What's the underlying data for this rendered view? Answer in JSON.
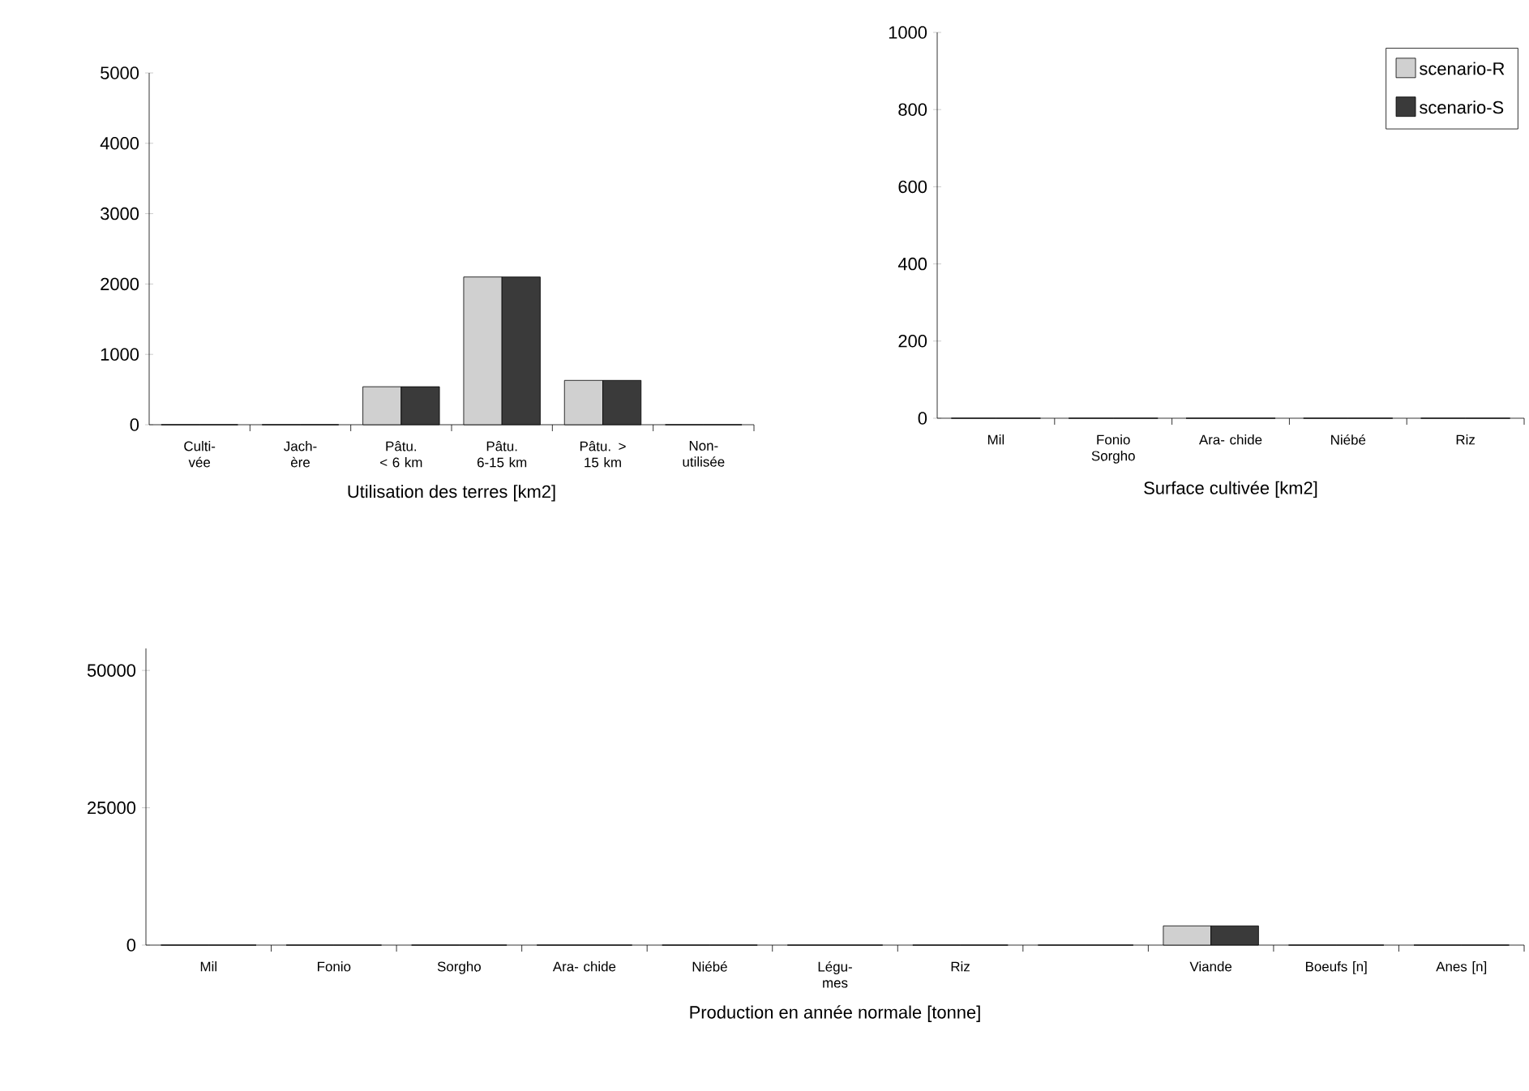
{
  "chart_data": [
    {
      "type": "bar",
      "xlabel": "Utilisation des terres  [km2]",
      "categories": [
        "Culti- vée",
        "Jach- ère",
        "Pâtu. < 6 km",
        "Pâtu. 6-15 km",
        "Pâtu. > 15 km",
        "Non- utilisée"
      ],
      "series": [
        {
          "color": "#d0d0d0",
          "values": [
            0,
            0,
            540,
            2100,
            630,
            0
          ]
        },
        {
          "color": "#3a3a3a",
          "values": [
            0,
            0,
            540,
            2100,
            630,
            0
          ]
        }
      ],
      "ylim": [
        0,
        5000
      ],
      "yticks": [
        0,
        1000,
        2000,
        3000,
        4000,
        5000
      ]
    },
    {
      "type": "bar",
      "xlabel": "Surface cultivée [km2]",
      "categories": [
        "Mil",
        "Fonio Sorgho",
        "Ara- chide",
        "Niébé",
        "Riz"
      ],
      "series": [
        {
          "name": "scenario-R",
          "color": "#d0d0d0",
          "values": [
            0,
            0,
            0,
            0,
            0
          ]
        },
        {
          "name": "scenario-S",
          "color": "#3a3a3a",
          "values": [
            0,
            0,
            0,
            0,
            0
          ]
        }
      ],
      "ylim": [
        0,
        1000
      ],
      "yticks": [
        0,
        200,
        400,
        600,
        800,
        1000
      ],
      "legend": "top right"
    },
    {
      "type": "bar",
      "xlabel": "Production en année normale  [tonne]",
      "categories": [
        "Mil",
        "Fonio",
        "Sorgho",
        "Ara- chide",
        "Niébé",
        "Légu- mes",
        "Riz",
        null,
        "Viande",
        "Boeufs [n]",
        "Anes [n]"
      ],
      "series": [
        {
          "color": "#d0d0d0",
          "values": [
            0,
            0,
            0,
            0,
            0,
            0,
            0,
            0,
            3500,
            0,
            0
          ]
        },
        {
          "color": "#3a3a3a",
          "values": [
            0,
            0,
            0,
            0,
            0,
            0,
            0,
            0,
            3500,
            0,
            0
          ]
        }
      ],
      "ylim": [
        0,
        54000
      ],
      "yticks": [
        0,
        25000,
        50000
      ]
    }
  ]
}
